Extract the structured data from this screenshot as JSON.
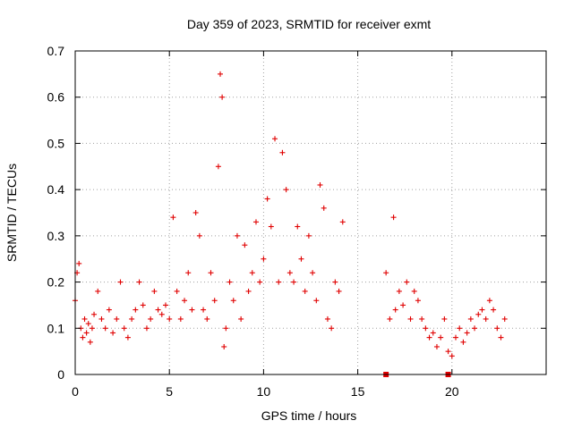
{
  "chart_data": {
    "type": "scatter",
    "title": "Day 359 of 2023, SRMTID for receiver exmt",
    "xlabel": "GPS time / hours",
    "ylabel": "SRMTID / TECUs",
    "xlim": [
      0,
      25
    ],
    "ylim": [
      0,
      0.7
    ],
    "xticks": [
      0,
      5,
      10,
      15,
      20
    ],
    "xtick_labels": [
      "0",
      "5",
      "10",
      "15",
      "20"
    ],
    "yticks": [
      0,
      0.1,
      0.2,
      0.3,
      0.4,
      0.5,
      0.6,
      0.7
    ],
    "ytick_labels": [
      "0",
      "0.1",
      "0.2",
      "0.3",
      "0.4",
      "0.5",
      "0.6",
      "0.7"
    ],
    "grid": true,
    "marker": "+",
    "color": "#e00000",
    "series": [
      {
        "name": "SRMTID",
        "x": [
          0.0,
          0.1,
          0.2,
          0.3,
          0.4,
          0.5,
          0.6,
          0.7,
          0.8,
          0.9,
          1.0,
          1.2,
          1.4,
          1.6,
          1.8,
          2.0,
          2.2,
          2.4,
          2.6,
          2.8,
          3.0,
          3.2,
          3.4,
          3.6,
          3.8,
          4.0,
          4.2,
          4.4,
          4.6,
          4.8,
          5.0,
          5.2,
          5.4,
          5.6,
          5.8,
          6.0,
          6.2,
          6.4,
          6.6,
          6.8,
          7.0,
          7.2,
          7.4,
          7.6,
          7.7,
          7.8,
          7.9,
          8.0,
          8.2,
          8.4,
          8.6,
          8.8,
          9.0,
          9.2,
          9.4,
          9.6,
          9.8,
          10.0,
          10.2,
          10.4,
          10.6,
          10.8,
          11.0,
          11.2,
          11.4,
          11.6,
          11.8,
          12.0,
          12.2,
          12.4,
          12.6,
          12.8,
          13.0,
          13.2,
          13.4,
          13.6,
          13.8,
          14.0,
          14.2,
          16.5,
          16.7,
          16.9,
          17.0,
          17.2,
          17.4,
          17.6,
          17.8,
          18.0,
          18.2,
          18.4,
          18.6,
          18.8,
          19.0,
          19.2,
          19.4,
          19.6,
          19.8,
          20.0,
          20.2,
          20.4,
          20.6,
          20.8,
          21.0,
          21.2,
          21.4,
          21.6,
          21.8,
          22.0,
          22.2,
          22.4,
          22.6,
          22.8
        ],
        "y": [
          0.16,
          0.22,
          0.24,
          0.1,
          0.08,
          0.12,
          0.09,
          0.11,
          0.07,
          0.1,
          0.13,
          0.18,
          0.12,
          0.1,
          0.14,
          0.09,
          0.12,
          0.2,
          0.1,
          0.08,
          0.12,
          0.14,
          0.2,
          0.15,
          0.1,
          0.12,
          0.18,
          0.14,
          0.13,
          0.15,
          0.12,
          0.34,
          0.18,
          0.12,
          0.16,
          0.22,
          0.14,
          0.35,
          0.3,
          0.14,
          0.12,
          0.22,
          0.16,
          0.45,
          0.65,
          0.6,
          0.06,
          0.1,
          0.2,
          0.16,
          0.3,
          0.12,
          0.28,
          0.18,
          0.22,
          0.33,
          0.2,
          0.25,
          0.38,
          0.32,
          0.51,
          0.2,
          0.48,
          0.4,
          0.22,
          0.2,
          0.32,
          0.25,
          0.18,
          0.3,
          0.22,
          0.16,
          0.41,
          0.36,
          0.12,
          0.1,
          0.2,
          0.18,
          0.33,
          0.22,
          0.12,
          0.34,
          0.14,
          0.18,
          0.15,
          0.2,
          0.12,
          0.18,
          0.16,
          0.12,
          0.1,
          0.08,
          0.09,
          0.06,
          0.08,
          0.12,
          0.05,
          0.04,
          0.08,
          0.1,
          0.07,
          0.09,
          0.12,
          0.1,
          0.13,
          0.14,
          0.12,
          0.16,
          0.14,
          0.1,
          0.08,
          0.12
        ]
      }
    ],
    "gap_markers": {
      "x": [
        16.5,
        19.8
      ],
      "y": [
        0,
        0
      ]
    }
  }
}
